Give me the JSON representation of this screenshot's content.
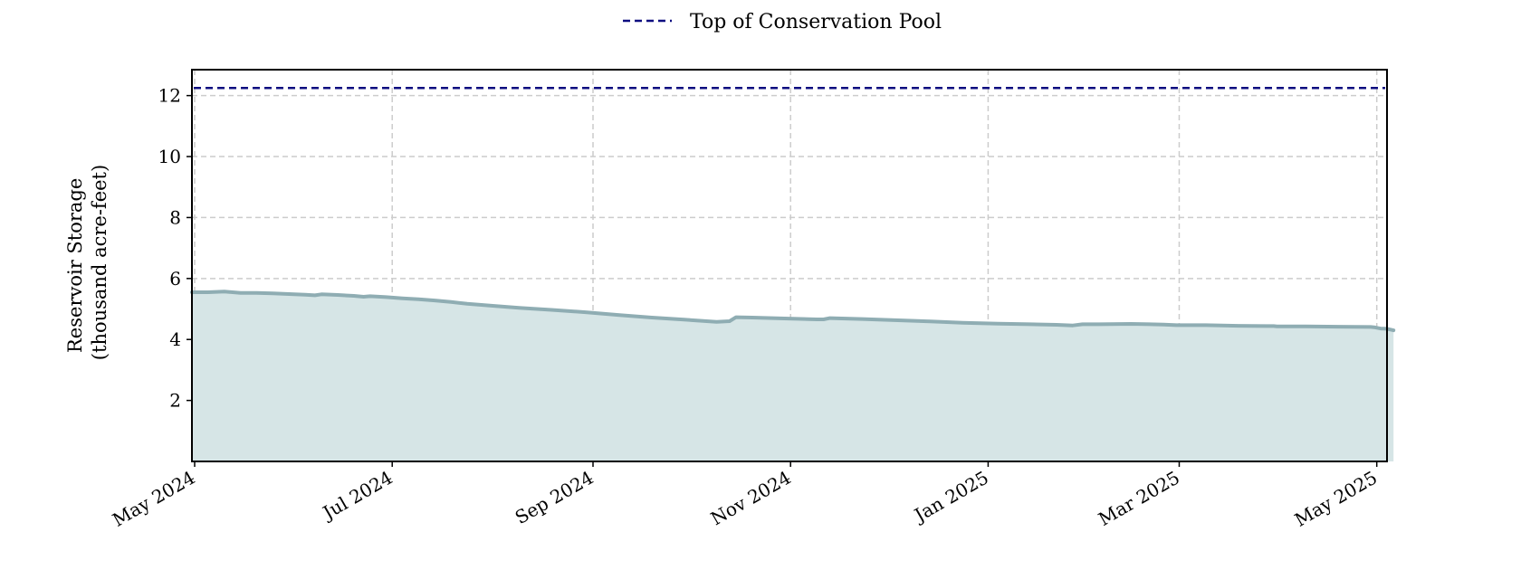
{
  "chart_data": {
    "type": "area",
    "title": "",
    "xlabel": "",
    "ylabel": [
      "Reservoir Storage",
      "(thousand acre-feet)"
    ],
    "x_axis_type": "date",
    "xlim": [
      "2024-05-01",
      "2025-05-05"
    ],
    "ylim": [
      0,
      12.85
    ],
    "yticks": [
      2,
      4,
      6,
      8,
      10,
      12
    ],
    "xticks": [
      {
        "date": "2024-05-01",
        "label": "May 2024"
      },
      {
        "date": "2024-07-01",
        "label": "Jul 2024"
      },
      {
        "date": "2024-09-01",
        "label": "Sep 2024"
      },
      {
        "date": "2024-11-01",
        "label": "Nov 2024"
      },
      {
        "date": "2025-01-01",
        "label": "Jan 2025"
      },
      {
        "date": "2025-03-01",
        "label": "Mar 2025"
      },
      {
        "date": "2025-05-01",
        "label": "May 2025"
      }
    ],
    "grid": true,
    "legend_position": "top-center",
    "series": [
      {
        "kind": "area",
        "color": "#8fadb3",
        "fill_color": "#d6e5e6",
        "points": [
          [
            "2024-05-01",
            5.55
          ],
          [
            "2024-05-06",
            5.55
          ],
          [
            "2024-05-11",
            5.57
          ],
          [
            "2024-05-16",
            5.53
          ],
          [
            "2024-05-21",
            5.53
          ],
          [
            "2024-05-26",
            5.51
          ],
          [
            "2024-05-31",
            5.49
          ],
          [
            "2024-06-05",
            5.47
          ],
          [
            "2024-06-08",
            5.45
          ],
          [
            "2024-06-10",
            5.48
          ],
          [
            "2024-06-15",
            5.46
          ],
          [
            "2024-06-20",
            5.43
          ],
          [
            "2024-06-23",
            5.4
          ],
          [
            "2024-06-25",
            5.42
          ],
          [
            "2024-06-30",
            5.39
          ],
          [
            "2024-07-05",
            5.35
          ],
          [
            "2024-07-10",
            5.32
          ],
          [
            "2024-07-15",
            5.28
          ],
          [
            "2024-07-20",
            5.23
          ],
          [
            "2024-07-25",
            5.17
          ],
          [
            "2024-08-01",
            5.11
          ],
          [
            "2024-08-10",
            5.04
          ],
          [
            "2024-08-20",
            4.97
          ],
          [
            "2024-08-31",
            4.89
          ],
          [
            "2024-09-10",
            4.8
          ],
          [
            "2024-09-20",
            4.72
          ],
          [
            "2024-09-30",
            4.65
          ],
          [
            "2024-10-10",
            4.58
          ],
          [
            "2024-10-14",
            4.6
          ],
          [
            "2024-10-16",
            4.73
          ],
          [
            "2024-10-21",
            4.72
          ],
          [
            "2024-10-31",
            4.69
          ],
          [
            "2024-11-10",
            4.66
          ],
          [
            "2024-11-12",
            4.66
          ],
          [
            "2024-11-14",
            4.7
          ],
          [
            "2024-11-24",
            4.67
          ],
          [
            "2024-12-05",
            4.63
          ],
          [
            "2024-12-15",
            4.59
          ],
          [
            "2024-12-25",
            4.55
          ],
          [
            "2025-01-05",
            4.52
          ],
          [
            "2025-01-15",
            4.5
          ],
          [
            "2025-01-23",
            4.48
          ],
          [
            "2025-01-28",
            4.46
          ],
          [
            "2025-01-31",
            4.5
          ],
          [
            "2025-02-05",
            4.5
          ],
          [
            "2025-02-15",
            4.51
          ],
          [
            "2025-02-25",
            4.49
          ],
          [
            "2025-03-01",
            4.47
          ],
          [
            "2025-03-10",
            4.47
          ],
          [
            "2025-03-20",
            4.45
          ],
          [
            "2025-03-31",
            4.44
          ],
          [
            "2025-04-01",
            4.43
          ],
          [
            "2025-04-10",
            4.43
          ],
          [
            "2025-04-20",
            4.42
          ],
          [
            "2025-04-30",
            4.41
          ],
          [
            "2025-05-01",
            4.4
          ],
          [
            "2025-05-03",
            4.36
          ],
          [
            "2025-05-05",
            4.35
          ],
          [
            "2025-05-07",
            4.3
          ]
        ]
      },
      {
        "name": "Top of Conservation Pool",
        "kind": "hline",
        "value": 12.25,
        "color": "#0d0d80",
        "dash": true
      }
    ]
  }
}
